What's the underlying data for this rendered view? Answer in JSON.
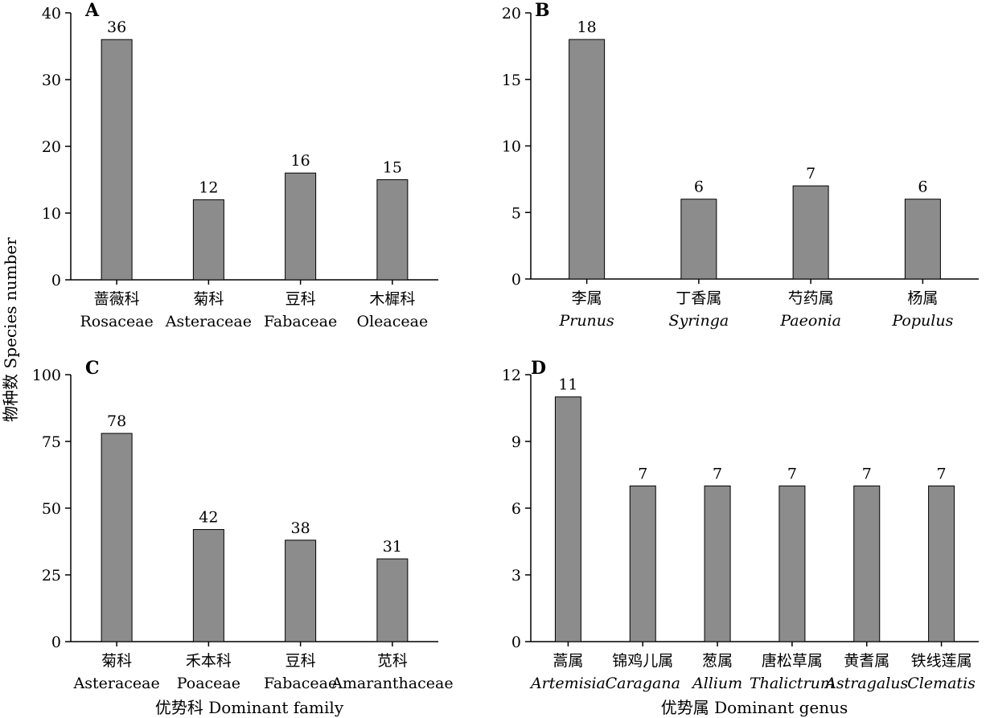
{
  "figure": {
    "ylabel": "物种数 Species number",
    "xlabel_left": "优势科 Dominant family",
    "xlabel_right": "优势属 Dominant genus",
    "bar_color": "#8c8c8c"
  },
  "chart_data": [
    {
      "panel": "A",
      "type": "bar",
      "categories": [
        "蔷薇科",
        "菊科",
        "豆科",
        "木樨科"
      ],
      "categories_latin": [
        "Rosaceae",
        "Asteraceae",
        "Fabaceae",
        "Oleaceae"
      ],
      "latin_italic": false,
      "values": [
        36,
        12,
        16,
        15
      ],
      "ylim": [
        0,
        40
      ],
      "yticks": [
        0,
        10,
        20,
        30,
        40
      ],
      "grid": false
    },
    {
      "panel": "B",
      "type": "bar",
      "categories": [
        "李属",
        "丁香属",
        "芍药属",
        "杨属"
      ],
      "categories_latin": [
        "Prunus",
        "Syringa",
        "Paeonia",
        "Populus"
      ],
      "latin_italic": true,
      "values": [
        18,
        6,
        7,
        6
      ],
      "ylim": [
        0,
        20
      ],
      "yticks": [
        0,
        5,
        10,
        15,
        20
      ],
      "grid": false
    },
    {
      "panel": "C",
      "type": "bar",
      "categories": [
        "菊科",
        "禾本科",
        "豆科",
        "苋科"
      ],
      "categories_latin": [
        "Asteraceae",
        "Poaceae",
        "Fabaceae",
        "Amaranthaceae"
      ],
      "latin_italic": false,
      "values": [
        78,
        42,
        38,
        31
      ],
      "ylim": [
        0,
        100
      ],
      "yticks": [
        0,
        25,
        50,
        75,
        100
      ],
      "grid": false
    },
    {
      "panel": "D",
      "type": "bar",
      "categories": [
        "蒿属",
        "锦鸡儿属",
        "葱属",
        "唐松草属",
        "黄耆属",
        "铁线莲属"
      ],
      "categories_latin": [
        "Artemisia",
        "Caragana",
        "Allium",
        "Thalictrum",
        "Astragalus",
        "Clematis"
      ],
      "latin_italic": true,
      "values": [
        11,
        7,
        7,
        7,
        7,
        7
      ],
      "ylim": [
        0,
        12
      ],
      "yticks": [
        0,
        3,
        6,
        9,
        12
      ],
      "grid": false
    }
  ]
}
